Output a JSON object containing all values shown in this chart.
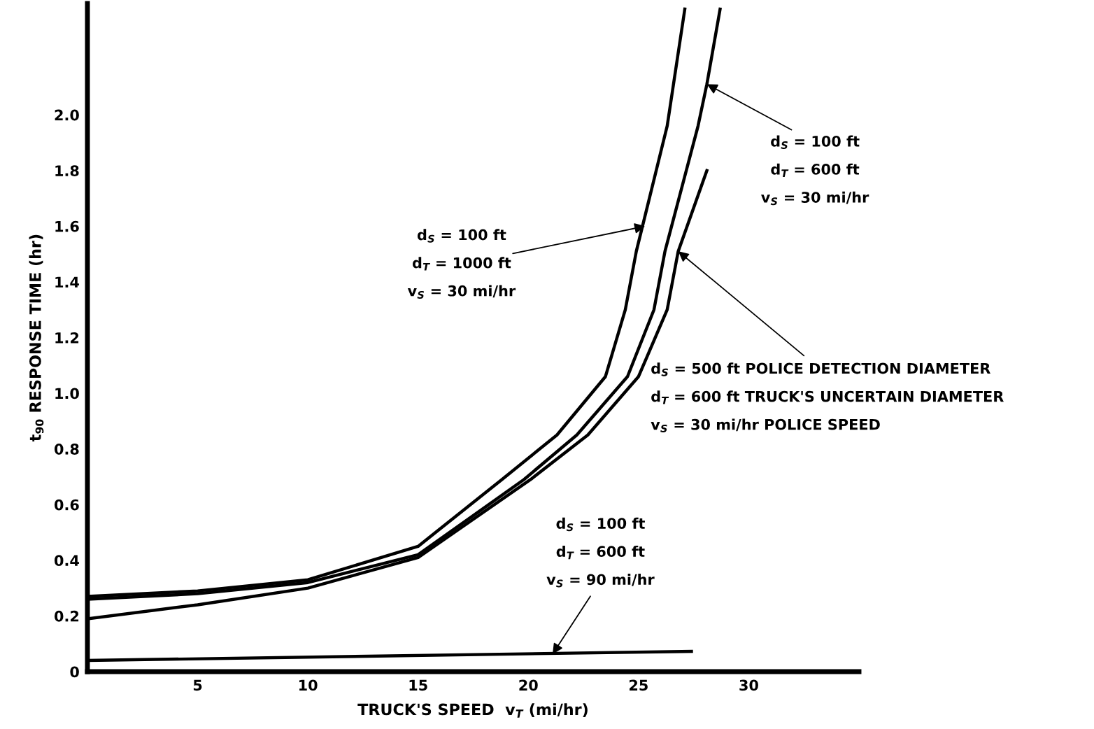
{
  "chart_data": {
    "type": "line",
    "xlabel": "TRUCK'S SPEED  v$_{T}$ (mi/hr)",
    "ylabel": "t$_{90}$ RESPONSE TIME (hr)",
    "xlim": [
      0,
      35
    ],
    "ylim": [
      0,
      2.4
    ],
    "xticks": [
      5,
      10,
      15,
      20,
      25,
      30
    ],
    "yticks": [
      0,
      0.2,
      0.4,
      0.6,
      0.8,
      {
        "value": 1,
        "label": "1.0"
      },
      1.2,
      1.4,
      1.6,
      1.8,
      {
        "value": 2,
        "label": "2.0"
      }
    ],
    "grid": false,
    "legend": false,
    "marker": "none",
    "line_style": "solid",
    "series": [
      {
        "color": "#000000",
        "x": [
          0,
          5,
          10,
          15,
          18.8,
          21.3,
          23.5,
          24.4,
          24.9,
          26.3,
          27.1
        ],
        "values": [
          0.27,
          0.29,
          0.33,
          0.45,
          0.69,
          0.85,
          1.06,
          1.3,
          1.51,
          1.96,
          2.38
        ]
      },
      {
        "color": "#000000",
        "x": [
          0,
          5,
          10,
          15,
          19.8,
          22.2,
          24.5,
          25.7,
          26.2,
          27.7,
          28.1,
          28.7
        ],
        "values": [
          0.26,
          0.28,
          0.32,
          0.42,
          0.69,
          0.85,
          1.06,
          1.3,
          1.51,
          1.96,
          2.11,
          2.38
        ]
      },
      {
        "color": "#000000",
        "x": [
          0,
          5,
          10,
          15,
          20.1,
          22.7,
          25.0,
          26.3,
          26.8,
          28.1
        ],
        "values": [
          0.19,
          0.24,
          0.3,
          0.41,
          0.69,
          0.85,
          1.06,
          1.3,
          1.51,
          1.8
        ]
      },
      {
        "color": "#000000",
        "x": [
          0,
          27.4
        ],
        "values": [
          0.04,
          0.073
        ]
      }
    ],
    "annotations": [
      "d$_{S}$ = 100 ft",
      {
        "text": "d$_{T}$ = 1000 ft",
        "x": 25.3,
        "y": 1.6
      },
      "v$_{S}$ = 30 mi/hr",
      {
        "text": "d$_{S}$ = 100 ft",
        "x": 28.1,
        "y": 2.11
      },
      "d$_{T}$ = 600 ft",
      "v$_{S}$ = 30 mi/hr",
      {
        "text": "d$_{S}$ = 500 ft POLICE DETECTION DIAMETER",
        "x": 26.8,
        "y": 1.51
      },
      "d$_{T}$ = 600 ft TRUCK'S UNCERTAIN DIAMETER",
      "v$_{S}$ = 30 mi/hr POLICE SPEED",
      "d$_{S}$ = 100 ft",
      "d$_{T}$ = 600 ft",
      {
        "text": "v$_{S}$ = 90 mi/hr",
        "x": 21.1,
        "y": 0.063
      }
    ]
  }
}
